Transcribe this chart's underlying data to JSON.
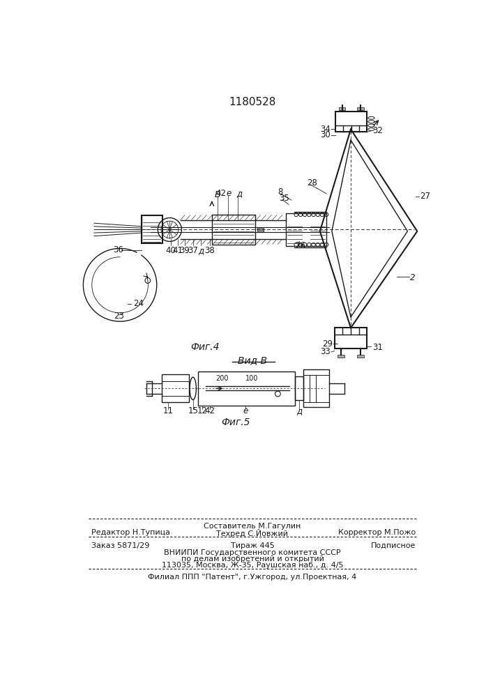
{
  "patent_number": "1180528",
  "bg_color": "#ffffff",
  "line_color": "#1a1a1a",
  "fig4_caption": "Фиг.4",
  "fig5_caption": "Фиг.5",
  "vid_b_label": "Вид В",
  "footer_line1_center": "Составитель М.Гагулин",
  "footer_line2_left": "Редактор Н.Тупица",
  "footer_line2_center": "Техред С.Йовжий",
  "footer_line2_right": "Корректор М.Пожо",
  "footer_line3_left": "Заказ 5871/29",
  "footer_line3_center": "Тираж 445",
  "footer_line3_right": "Подписное",
  "footer_line4": "ВНИИПИ Государственного комитета СССР",
  "footer_line5": "по делам изобретений и открытий",
  "footer_line6": "113035, Москва, Ж-35, Раушская наб., д. 4/5",
  "footer_line7": "Филиал ППП \"Патент\", г.Ужгород, ул.Проектная, 4"
}
